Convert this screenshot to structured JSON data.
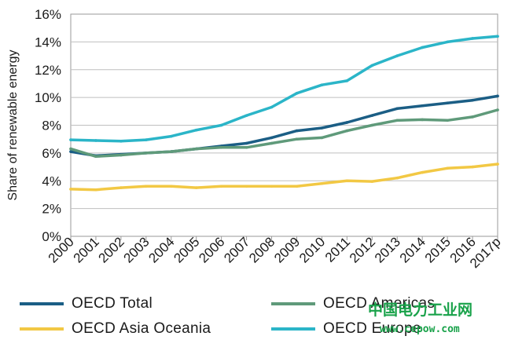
{
  "chart_data": {
    "type": "line",
    "title": "",
    "xlabel": "",
    "ylabel": "Share of renewable energy",
    "ylim": [
      0,
      16
    ],
    "yticks": [
      "0%",
      "2%",
      "4%",
      "6%",
      "8%",
      "10%",
      "12%",
      "14%",
      "16%"
    ],
    "grid": "horizontal",
    "legend_position": "bottom",
    "categories": [
      "2000",
      "2001",
      "2002",
      "2003",
      "2004",
      "2005",
      "2006",
      "2007",
      "2008",
      "2009",
      "2010",
      "2011",
      "2012",
      "2013",
      "2014",
      "2015",
      "2016",
      "2017p"
    ],
    "series": [
      {
        "name": "OECD Total",
        "color": "#1b5e85",
        "values": [
          6.1,
          5.8,
          5.9,
          6.0,
          6.1,
          6.3,
          6.5,
          6.7,
          7.1,
          7.6,
          7.8,
          8.2,
          8.7,
          9.2,
          9.4,
          9.6,
          9.8,
          10.1
        ]
      },
      {
        "name": "OECD Americas",
        "color": "#5f9a7a",
        "values": [
          6.3,
          5.75,
          5.85,
          6.0,
          6.1,
          6.3,
          6.4,
          6.4,
          6.7,
          7.0,
          7.1,
          7.6,
          8.0,
          8.35,
          8.4,
          8.35,
          8.6,
          9.1
        ]
      },
      {
        "name": "OECD Asia Oceania",
        "color": "#f2c844",
        "values": [
          3.4,
          3.35,
          3.5,
          3.6,
          3.6,
          3.5,
          3.6,
          3.6,
          3.6,
          3.6,
          3.8,
          4.0,
          3.95,
          4.2,
          4.6,
          4.9,
          5.0,
          5.2
        ]
      },
      {
        "name": "OECD Europe",
        "color": "#2bb5c8",
        "values": [
          6.95,
          6.9,
          6.85,
          6.95,
          7.2,
          7.65,
          8.0,
          8.7,
          9.3,
          10.3,
          10.9,
          11.2,
          12.3,
          13.0,
          13.6,
          14.0,
          14.25,
          14.4
        ]
      }
    ]
  },
  "legend": [
    {
      "label": "OECD Total",
      "color": "#1b5e85"
    },
    {
      "label": "OECD Americas",
      "color": "#5f9a7a"
    },
    {
      "label": "OECD Asia Oceania",
      "color": "#f2c844"
    },
    {
      "label": "OECD Europe",
      "color": "#2bb5c8"
    }
  ],
  "watermark": {
    "site_name": "中国电力工业网",
    "url": "www.cepow.com"
  }
}
